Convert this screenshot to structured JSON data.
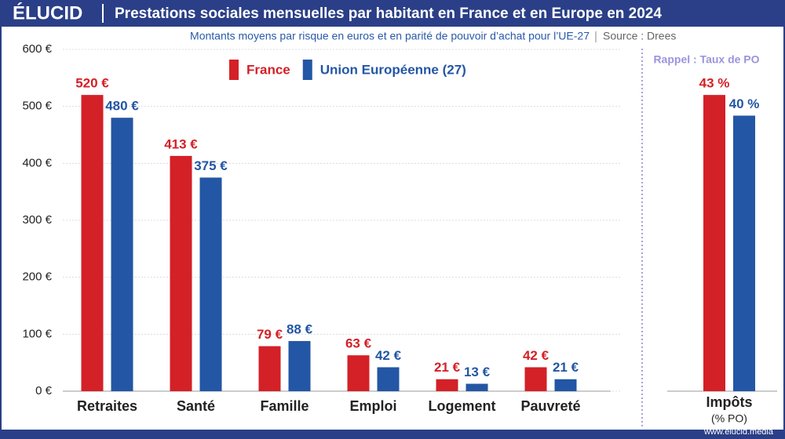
{
  "header": {
    "logo": "ÉLUCID",
    "title": "Prestations sociales mensuelles par habitant en France et en Europe en 2024",
    "subtitle": "Montants moyens par risque en euros et en parité de pouvoir d’achat pour l’UE-27",
    "source": "Source : Drees"
  },
  "footer": {
    "url": "www.elucid.media"
  },
  "chart_data": [
    {
      "type": "bar",
      "legend": "top",
      "grid": true,
      "categories": [
        "Retraites",
        "Santé",
        "Famille",
        "Emploi",
        "Logement",
        "Pauvreté"
      ],
      "series": [
        {
          "name": "France",
          "color": "#d42027",
          "values": [
            520,
            413,
            79,
            63,
            21,
            42
          ],
          "value_labels": [
            "520 €",
            "413 €",
            "79 €",
            "63 €",
            "21 €",
            "42 €"
          ]
        },
        {
          "name": "Union Européenne (27)",
          "color": "#2356a4",
          "values": [
            480,
            375,
            88,
            42,
            13,
            21
          ],
          "value_labels": [
            "480 €",
            "375 €",
            "88 €",
            "42 €",
            "13 €",
            "21 €"
          ]
        }
      ],
      "ylim": [
        0,
        600
      ],
      "yticks": [
        {
          "value": 0,
          "label": "0 €"
        },
        {
          "value": 100,
          "label": "100 €"
        },
        {
          "value": 200,
          "label": "200 €"
        },
        {
          "value": 300,
          "label": "300 €"
        },
        {
          "value": 400,
          "label": "400 €"
        },
        {
          "value": 500,
          "label": "500 €"
        },
        {
          "value": 600,
          "label": "600 €"
        }
      ]
    },
    {
      "type": "bar",
      "title": "Rappel : Taux de PO",
      "categories": [
        "Impôts"
      ],
      "unit": "(% PO)",
      "series": [
        {
          "color": "#d42027",
          "values": [
            43
          ],
          "value_labels": [
            "43 %"
          ]
        },
        {
          "color": "#2356a4",
          "values": [
            40
          ],
          "value_labels": [
            "40 %"
          ]
        }
      ]
    }
  ]
}
